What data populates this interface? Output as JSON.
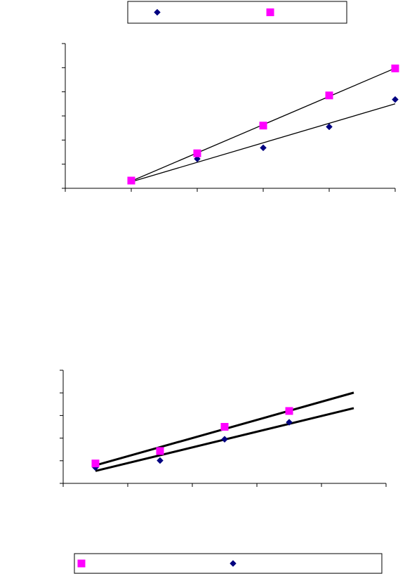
{
  "chart_data": [
    {
      "type": "scatter",
      "title": "",
      "xlabel": "",
      "ylabel": "",
      "xlim": [
        0,
        5
      ],
      "ylim": [
        0,
        6
      ],
      "grid": false,
      "legend": "top",
      "legend_marker_order": [
        "diamond",
        "square"
      ],
      "series": [
        {
          "marker": "diamond",
          "color": "#000080",
          "trendline": "linear",
          "points": [
            [
              1,
              0.3
            ],
            [
              2,
              1.22
            ],
            [
              3,
              1.68
            ],
            [
              4,
              2.55
            ],
            [
              5,
              3.68
            ]
          ]
        },
        {
          "marker": "square",
          "color": "#FF00FF",
          "trendline": "linear",
          "points": [
            [
              1,
              0.32
            ],
            [
              2,
              1.45
            ],
            [
              3,
              2.6
            ],
            [
              4,
              3.85
            ],
            [
              5,
              4.97
            ]
          ]
        }
      ]
    },
    {
      "type": "scatter",
      "title": "",
      "xlabel": "",
      "ylabel": "",
      "xlim": [
        0,
        5
      ],
      "ylim": [
        0,
        5
      ],
      "grid": false,
      "legend": "bottom",
      "legend_marker_order": [
        "square",
        "diamond"
      ],
      "series": [
        {
          "marker": "square",
          "color": "#FF00FF",
          "trendline": "linear",
          "points": [
            [
              0.5,
              0.88
            ],
            [
              1.5,
              1.43
            ],
            [
              2.5,
              2.5
            ],
            [
              3.5,
              3.2
            ]
          ]
        },
        {
          "marker": "diamond",
          "color": "#000080",
          "trendline": "linear",
          "points": [
            [
              0.5,
              0.7
            ],
            [
              1.5,
              1.01
            ],
            [
              2.5,
              1.95
            ],
            [
              3.5,
              2.7
            ]
          ]
        }
      ]
    }
  ]
}
